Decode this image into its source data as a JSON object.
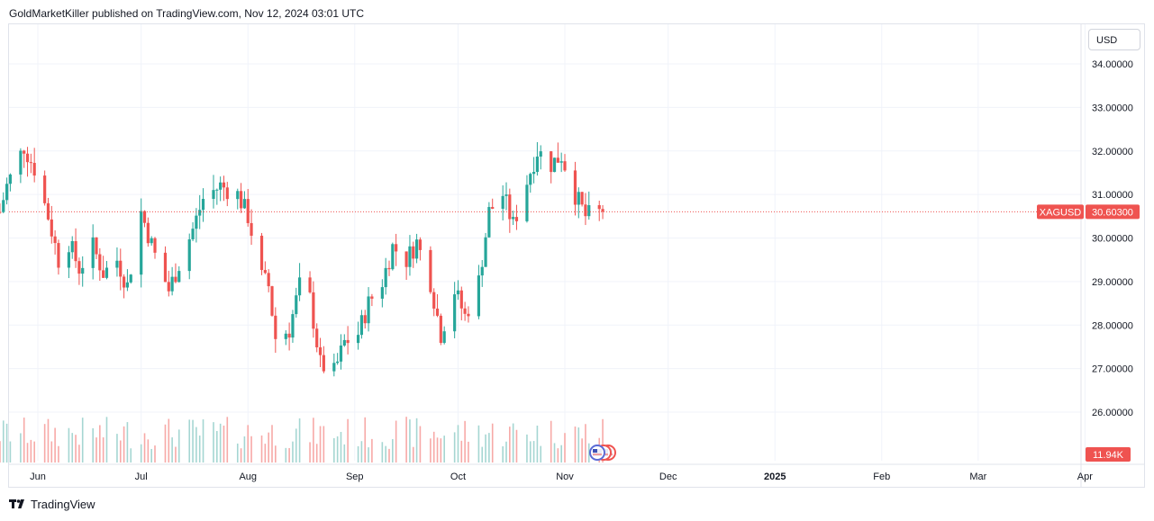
{
  "header": {
    "publisher_line": "GoldMarketKiller published on TradingView.com, Nov 12, 2024 03:01 UTC"
  },
  "footer": {
    "brand": "TradingView"
  },
  "price_scale": {
    "currency": "USD"
  },
  "colors": {
    "up": "#26a69a",
    "down": "#ef5350",
    "vol_up": "#a5d6d2",
    "vol_down": "#f7a9a7",
    "grid": "#f0f3fa",
    "price_line": "#ef5350"
  },
  "icons": {
    "flag": "us-flag-icon",
    "logo": "tradingview-logo-icon"
  },
  "chart_data": {
    "type": "candlestick",
    "symbol": "XAGUSD",
    "last_price": 30.603,
    "last_price_label": "30.60300",
    "volume_label": "11.94K",
    "ylim": [
      25.0,
      35.1
    ],
    "y_ticks": [
      {
        "value": 34,
        "label": "34.00000"
      },
      {
        "value": 33,
        "label": "33.00000"
      },
      {
        "value": 32,
        "label": "32.00000"
      },
      {
        "value": 31,
        "label": "31.00000"
      },
      {
        "value": 30,
        "label": "30.00000"
      },
      {
        "value": 29,
        "label": "29.00000"
      },
      {
        "value": 28,
        "label": "28.00000"
      },
      {
        "value": 27,
        "label": "27.00000"
      },
      {
        "value": 26,
        "label": "26.00000"
      }
    ],
    "x_ticks": [
      {
        "label": "Jun",
        "bold": false
      },
      {
        "label": "Jul",
        "bold": false
      },
      {
        "label": "Aug",
        "bold": false
      },
      {
        "label": "Sep",
        "bold": false
      },
      {
        "label": "Oct",
        "bold": false
      },
      {
        "label": "Nov",
        "bold": false
      },
      {
        "label": "Dec",
        "bold": false
      },
      {
        "label": "2025",
        "bold": true
      },
      {
        "label": "Feb",
        "bold": false
      },
      {
        "label": "Mar",
        "bold": false
      },
      {
        "label": "Apr",
        "bold": false
      }
    ],
    "x_tick_dates": [
      "2024-06-01",
      "2024-07-01",
      "2024-08-01",
      "2024-09-01",
      "2024-10-01",
      "2024-11-01",
      "2024-12-01",
      "2025-01-01",
      "2025-02-01",
      "2025-03-01",
      "2025-04-01"
    ],
    "first_bar": "2024-05-21",
    "last_bar": "2024-11-12",
    "close_anchors": [
      [
        "2024-05-21",
        30.6
      ],
      [
        "2024-05-23",
        31.2
      ],
      [
        "2024-05-28",
        32.1
      ],
      [
        "2024-05-31",
        31.6
      ],
      [
        "2024-06-04",
        30.5
      ],
      [
        "2024-06-07",
        29.5
      ],
      [
        "2024-06-10",
        29.9
      ],
      [
        "2024-06-13",
        29.3
      ],
      [
        "2024-06-17",
        29.8
      ],
      [
        "2024-06-20",
        29.2
      ],
      [
        "2024-06-24",
        29.5
      ],
      [
        "2024-06-27",
        28.9
      ],
      [
        "2024-07-01",
        30.6
      ],
      [
        "2024-07-05",
        29.6
      ],
      [
        "2024-07-09",
        28.8
      ],
      [
        "2024-07-12",
        29.4
      ],
      [
        "2024-07-16",
        30.2
      ],
      [
        "2024-07-19",
        30.9
      ],
      [
        "2024-07-24",
        31.2
      ],
      [
        "2024-07-29",
        31.0
      ],
      [
        "2024-08-01",
        30.5
      ],
      [
        "2024-08-05",
        29.1
      ],
      [
        "2024-08-07",
        28.9
      ],
      [
        "2024-08-09",
        27.7
      ],
      [
        "2024-08-13",
        27.9
      ],
      [
        "2024-08-16",
        28.9
      ],
      [
        "2024-08-19",
        28.6
      ],
      [
        "2024-08-22",
        27.1
      ],
      [
        "2024-08-26",
        26.9
      ],
      [
        "2024-08-29",
        27.6
      ],
      [
        "2024-09-02",
        27.8
      ],
      [
        "2024-09-05",
        28.5
      ],
      [
        "2024-09-09",
        29.0
      ],
      [
        "2024-09-12",
        29.8
      ],
      [
        "2024-09-16",
        29.5
      ],
      [
        "2024-09-19",
        29.9
      ],
      [
        "2024-09-23",
        29.0
      ],
      [
        "2024-09-26",
        27.8
      ],
      [
        "2024-09-30",
        28.8
      ],
      [
        "2024-10-03",
        28.2
      ],
      [
        "2024-10-07",
        29.0
      ],
      [
        "2024-10-10",
        30.6
      ],
      [
        "2024-10-14",
        31.0
      ],
      [
        "2024-10-17",
        30.3
      ],
      [
        "2024-10-21",
        31.3
      ],
      [
        "2024-10-24",
        32.0
      ],
      [
        "2024-10-28",
        31.7
      ],
      [
        "2024-10-31",
        31.9
      ],
      [
        "2024-11-04",
        31.0
      ],
      [
        "2024-11-07",
        30.5
      ],
      [
        "2024-11-12",
        30.6
      ]
    ]
  }
}
